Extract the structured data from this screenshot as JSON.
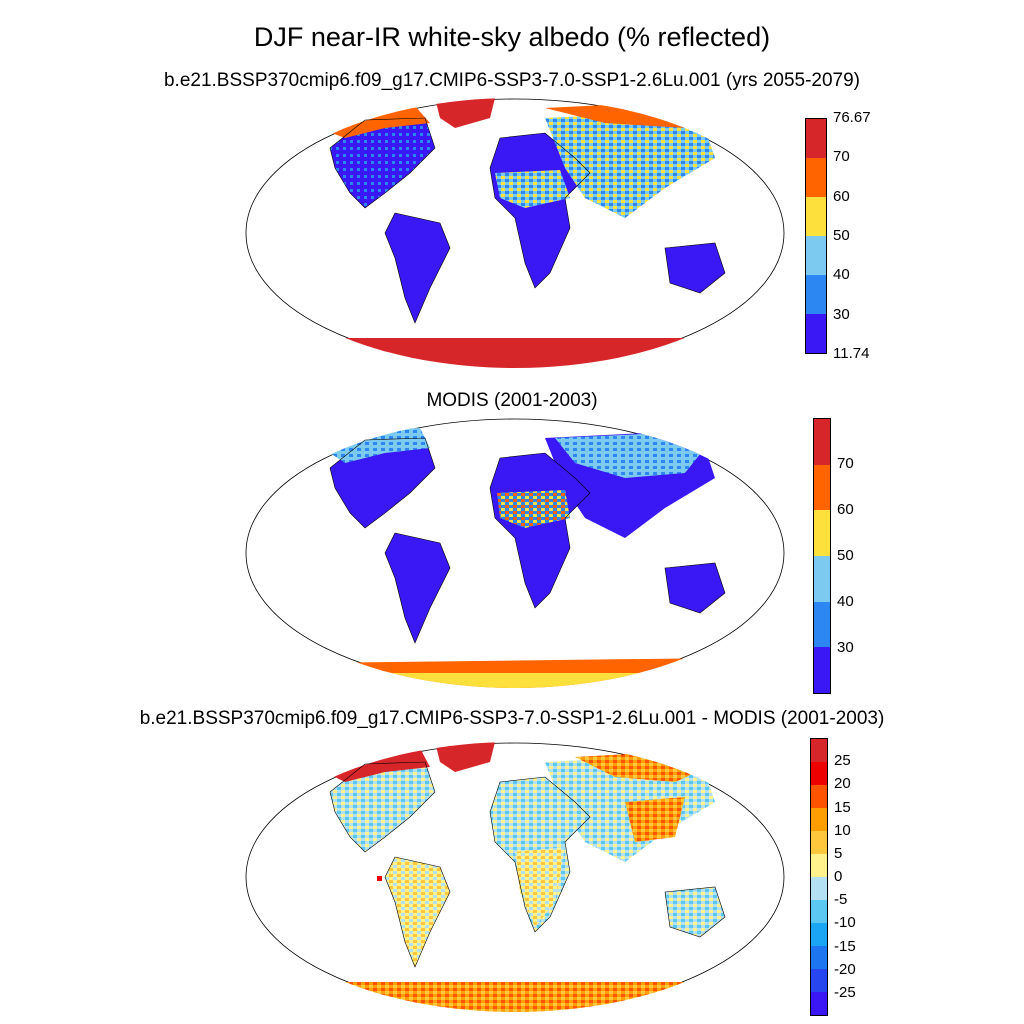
{
  "title": "DJF near-IR white-sky albedo (% reflected)",
  "subtitle": "b.e21.BSSP370cmip6.f09_g17.CMIP6-SSP3-7.0-SSP1-2.6Lu.001 (yrs 2055-2079)",
  "panels": [
    {
      "title": "",
      "colorbar": {
        "colors": [
          "#d7262a",
          "#ff6400",
          "#fde03b",
          "#7ccaf0",
          "#2d87f2",
          "#3a17f5"
        ],
        "labels": [
          "76.67",
          "70",
          "60",
          "50",
          "40",
          "30",
          "11.74"
        ]
      }
    },
    {
      "title": "MODIS (2001-2003)",
      "colorbar": {
        "colors": [
          "#d7262a",
          "#ff6400",
          "#fde03b",
          "#7ccaf0",
          "#2d87f2",
          "#3a17f5"
        ],
        "labels": [
          "70",
          "60",
          "50",
          "40",
          "30"
        ]
      }
    },
    {
      "title": "b.e21.BSSP370cmip6.f09_g17.CMIP6-SSP3-7.0-SSP1-2.6Lu.001 - MODIS (2001-2003)",
      "colorbar": {
        "colors": [
          "#d7262a",
          "#ee0000",
          "#ff5300",
          "#ff9e00",
          "#ffc83c",
          "#fff28c",
          "#b4e0f4",
          "#5ac8f0",
          "#1aa6f5",
          "#1d76f0",
          "#2846f0",
          "#3c17f5"
        ],
        "labels": [
          "25",
          "20",
          "15",
          "10",
          "5",
          "0",
          "-5",
          "-10",
          "-15",
          "-20",
          "-25"
        ]
      }
    }
  ]
}
